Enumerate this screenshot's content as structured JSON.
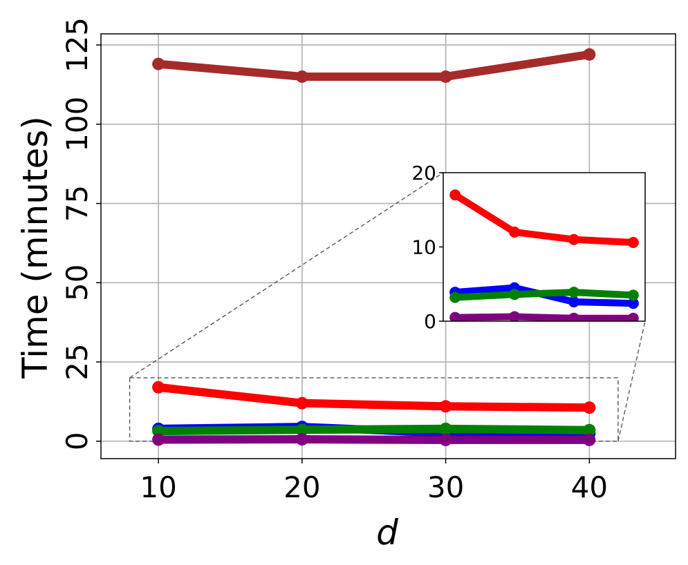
{
  "chart_data": {
    "type": "line",
    "xlabel": "d",
    "ylabel": "Time (minutes)",
    "x": [
      10,
      20,
      30,
      40
    ],
    "xticks": [
      "10",
      "20",
      "30",
      "40"
    ],
    "yticks": [
      "0",
      "25",
      "50",
      "75",
      "100",
      "125"
    ],
    "xlim": [
      6,
      46
    ],
    "ylim": [
      -5.5,
      128.5
    ],
    "grid": true,
    "series": [
      {
        "color": "#a52a2a",
        "values": [
          119,
          115,
          115,
          122
        ]
      },
      {
        "color": "#ff0000",
        "values": [
          17,
          12,
          11,
          10.6
        ]
      },
      {
        "color": "#0000ff",
        "values": [
          3.9,
          4.5,
          2.6,
          2.4
        ]
      },
      {
        "color": "#008000",
        "values": [
          3.2,
          3.6,
          3.9,
          3.5
        ]
      },
      {
        "color": "#800080",
        "values": [
          0.5,
          0.6,
          0.4,
          0.4
        ]
      }
    ],
    "inset": {
      "xlim": [
        8,
        42
      ],
      "ylim": [
        0,
        20
      ],
      "yticks": [
        "0",
        "10",
        "20"
      ],
      "series_indices": [
        1,
        2,
        3,
        4
      ]
    }
  }
}
